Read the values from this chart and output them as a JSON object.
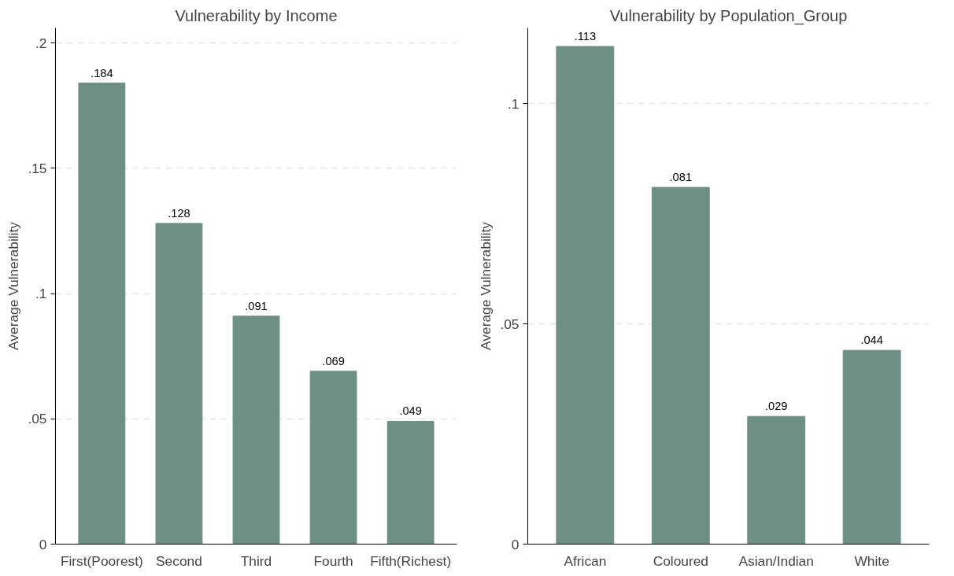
{
  "chart_data": [
    {
      "type": "bar",
      "title": "Vulnerability by Income",
      "ylabel": "Average Vulnerability",
      "categories": [
        "First(Poorest)",
        "Second",
        "Third",
        "Fourth",
        "Fifth(Richest)"
      ],
      "series": [
        {
          "color": "#6e8f84",
          "values": [
            0.184,
            0.128,
            0.091,
            0.069,
            0.049
          ],
          "value_labels": [
            ".184",
            ".128",
            ".091",
            ".069",
            ".049"
          ]
        }
      ],
      "ylim": [
        0,
        0.206
      ],
      "yticks": [
        {
          "value": 0,
          "label": "0"
        },
        {
          "value": 0.05,
          "label": ".05"
        },
        {
          "value": 0.1,
          "label": ".1"
        },
        {
          "value": 0.15,
          "label": ".15"
        },
        {
          "value": 0.2,
          "label": ".2"
        }
      ],
      "grid": "y"
    },
    {
      "type": "bar",
      "title": "Vulnerability by Population_Group",
      "ylabel": "Average Vulnerability",
      "categories": [
        "African",
        "Coloured",
        "Asian/Indian",
        "White"
      ],
      "series": [
        {
          "color": "#6e8f84",
          "values": [
            0.113,
            0.081,
            0.029,
            0.044
          ],
          "value_labels": [
            ".113",
            ".081",
            ".029",
            ".044"
          ]
        }
      ],
      "ylim": [
        0,
        0.1172
      ],
      "yticks": [
        {
          "value": 0,
          "label": "0"
        },
        {
          "value": 0.05,
          "label": ".05"
        },
        {
          "value": 0.1,
          "label": ".1"
        }
      ],
      "grid": "y"
    }
  ]
}
